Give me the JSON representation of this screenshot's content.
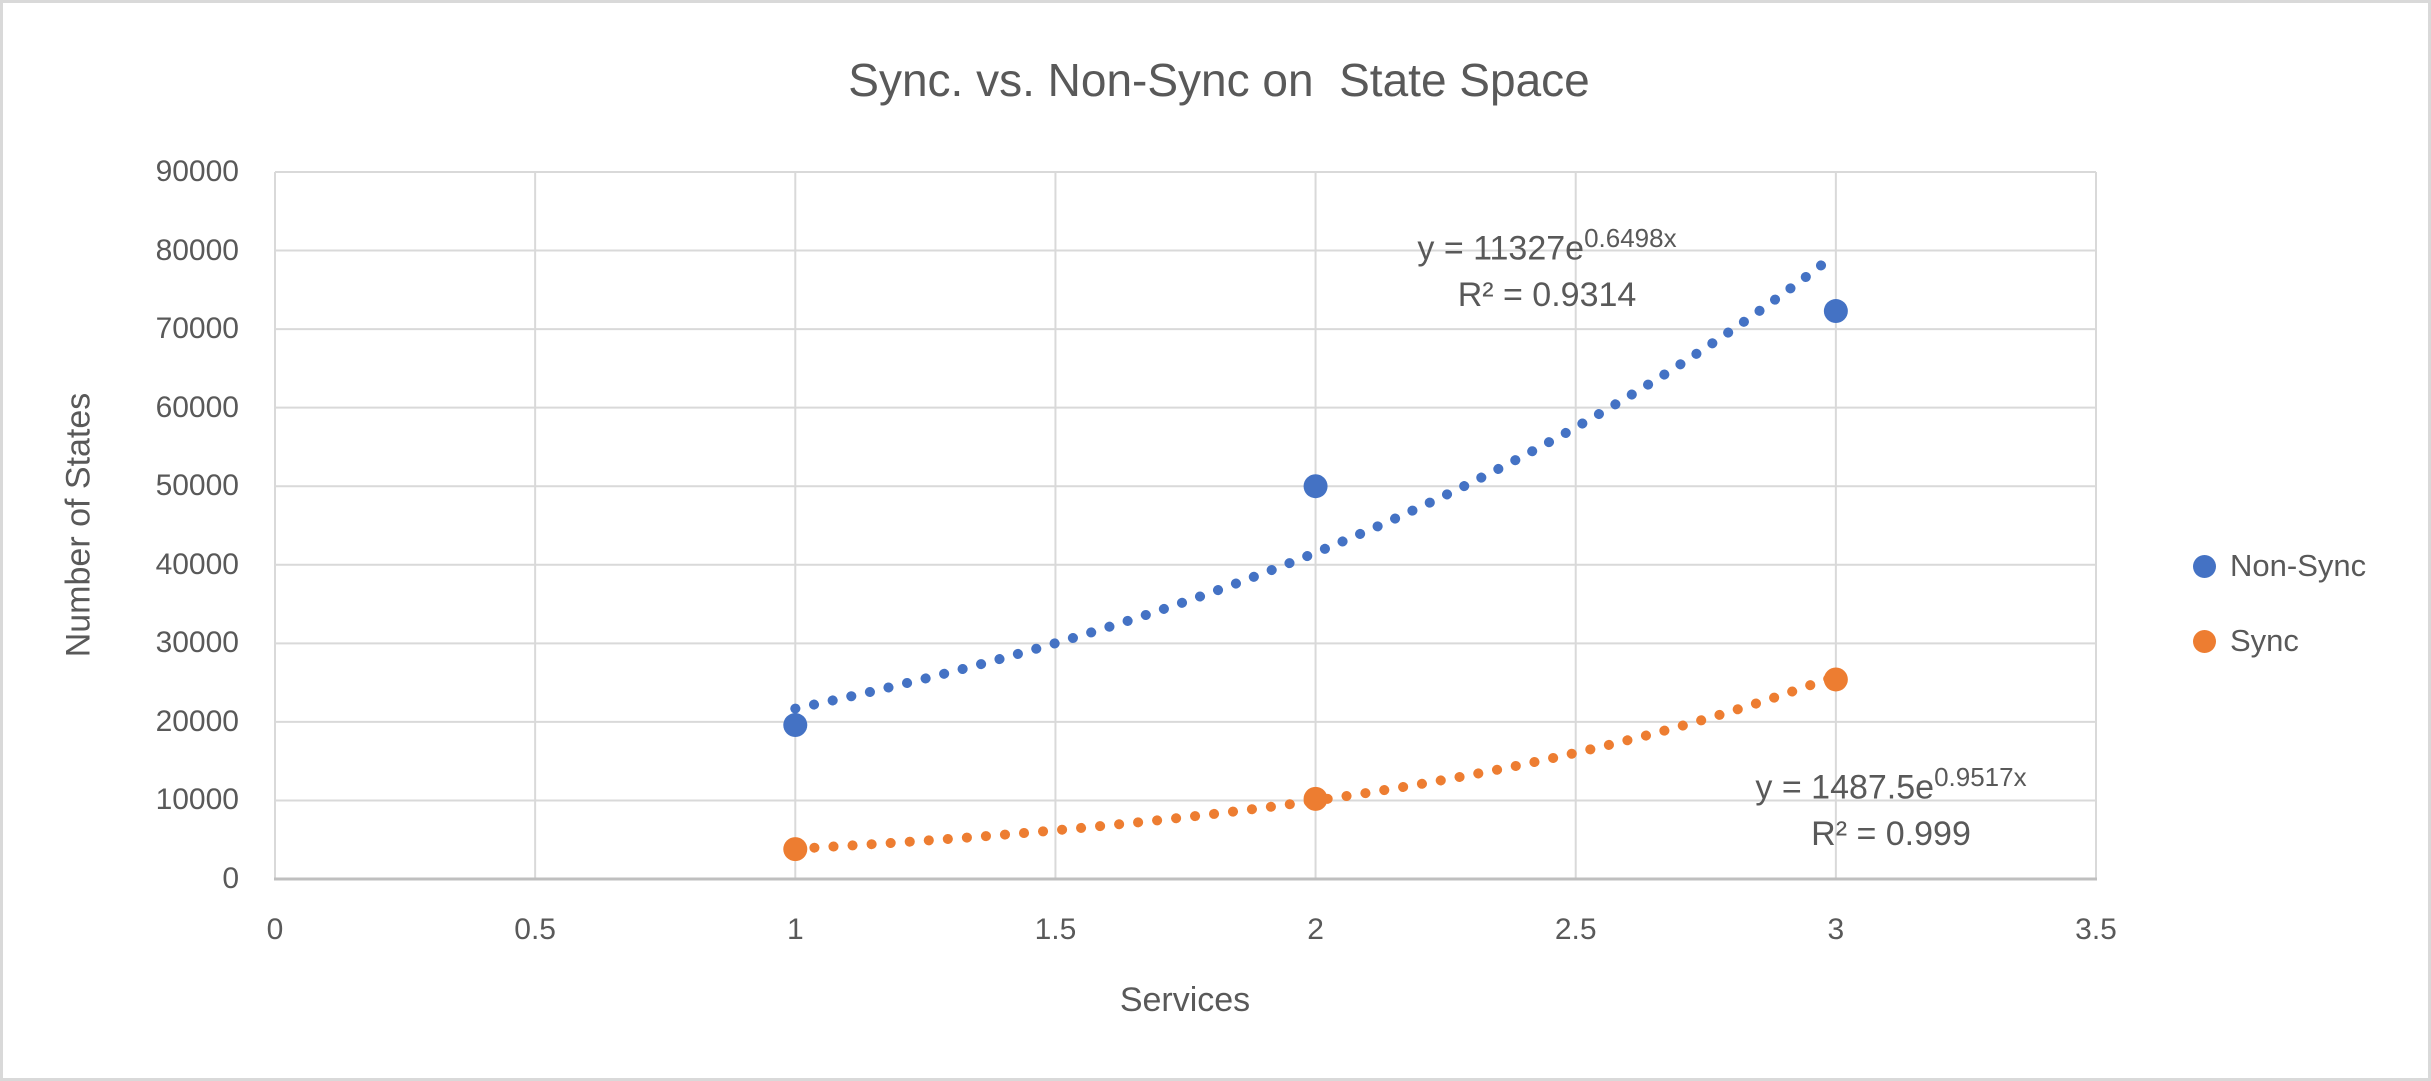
{
  "title": "Sync. vs. Non-Sync on  State Space",
  "chart_data": {
    "type": "scatter",
    "title": "Sync. vs. Non-Sync on  State Space",
    "xlabel": "Services",
    "ylabel": "Number of States",
    "xlim": [
      0,
      3.5
    ],
    "ylim": [
      0,
      90000
    ],
    "xticks": [
      0,
      0.5,
      1,
      1.5,
      2,
      2.5,
      3,
      3.5
    ],
    "yticks": [
      0,
      10000,
      20000,
      30000,
      40000,
      50000,
      60000,
      70000,
      80000,
      90000
    ],
    "grid": true,
    "legend_position": "right",
    "x": [
      1,
      2,
      3
    ],
    "series": [
      {
        "name": "Non-Sync",
        "color": "#4472C4",
        "values": [
          19600,
          50000,
          72300
        ],
        "trendline": {
          "type": "exponential",
          "a": 11327,
          "b": 0.6498,
          "r2": 0.9314,
          "x_range": [
            1,
            3
          ],
          "style": "dotted"
        }
      },
      {
        "name": "Sync",
        "color": "#ED7D31",
        "values": [
          3800,
          10200,
          25400
        ],
        "trendline": {
          "type": "exponential",
          "a": 1487.5,
          "b": 0.9517,
          "r2": 0.999,
          "x_range": [
            1,
            3
          ],
          "style": "dotted"
        }
      }
    ],
    "annotations": [
      {
        "series": "Non-Sync",
        "text": "y = 11327e^(0.6498x), R² = 0.9314"
      },
      {
        "series": "Sync",
        "text": "y = 1487.5e^(0.9517x), R² = 0.999"
      }
    ]
  },
  "equations": {
    "non_sync": {
      "base": "y = 11327e",
      "exponent": "0.6498x",
      "r2": "R² = 0.9314"
    },
    "sync": {
      "base": "y = 1487.5e",
      "exponent": "0.9517x",
      "r2": "R² = 0.999"
    }
  },
  "x_axis": {
    "title": "Services",
    "tick_labels": [
      "0",
      "0.5",
      "1",
      "1.5",
      "2",
      "2.5",
      "3",
      "3.5"
    ]
  },
  "y_axis": {
    "title": "Number of States",
    "tick_labels": [
      "0",
      "10000",
      "20000",
      "30000",
      "40000",
      "50000",
      "60000",
      "70000",
      "80000",
      "90000"
    ]
  },
  "legend": {
    "items": [
      {
        "label": "Non-Sync",
        "color": "#4472C4"
      },
      {
        "label": "Sync",
        "color": "#ED7D31"
      }
    ]
  },
  "colors": {
    "non_sync": "#4472C4",
    "sync": "#ED7D31",
    "text": "#595959",
    "gridline": "#D9D9D9",
    "axis_line": "#BFBFBF",
    "background": "#FFFFFF",
    "frame_border": "#D9D9D9"
  }
}
